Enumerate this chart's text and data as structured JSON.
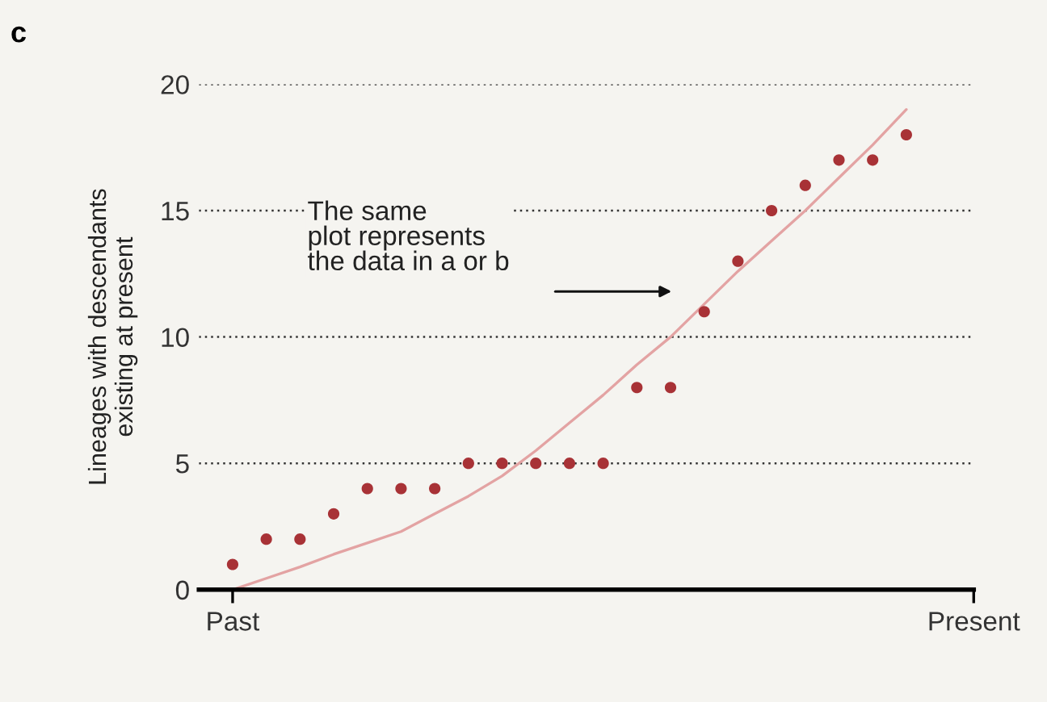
{
  "chart_data": {
    "type": "scatter",
    "title": "c",
    "ylabel": "Lineages with descendants\nexisting at present",
    "categories": [
      "Past",
      null,
      null,
      null,
      null,
      null,
      null,
      null,
      null,
      null,
      null,
      null,
      null,
      null,
      null,
      null,
      null,
      null,
      null,
      null,
      null,
      null,
      "Present"
    ],
    "ylim": [
      0,
      20
    ],
    "yticks": [
      0,
      5,
      10,
      15,
      20
    ],
    "grid": "y",
    "marker": "circle",
    "series": [
      {
        "color": "#a83236",
        "values": [
          1,
          2,
          2,
          3,
          4,
          4,
          4,
          5,
          5,
          5,
          5,
          5,
          8,
          8,
          11,
          13,
          15,
          16,
          17,
          17,
          18,
          null,
          null
        ]
      },
      {
        "type": "line",
        "color": "#e3a3a3",
        "marker": "none",
        "values": [
          0,
          0.45,
          0.9,
          1.4,
          1.85,
          2.3,
          3.0,
          3.7,
          4.5,
          5.5,
          6.6,
          7.7,
          8.9,
          10,
          11.3,
          12.6,
          13.8,
          15,
          16.3,
          17.6,
          19,
          null,
          null
        ]
      }
    ],
    "annotations": [
      "The same\nplot represents\nthe data in a or b"
    ]
  }
}
